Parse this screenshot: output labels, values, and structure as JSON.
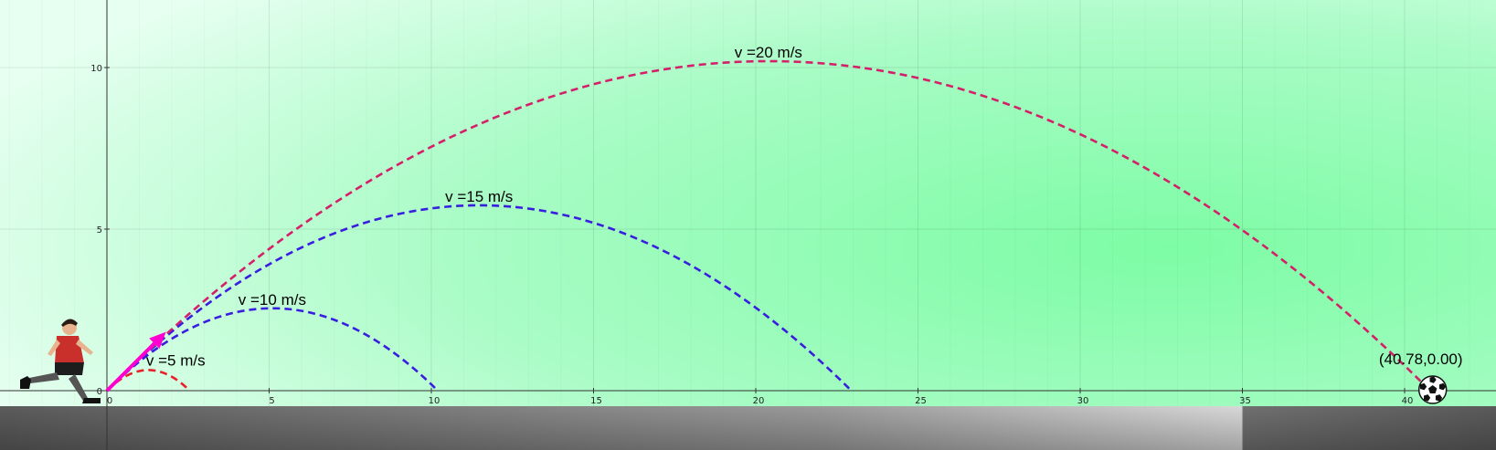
{
  "chart_data": {
    "type": "line",
    "title": "",
    "xlabel": "",
    "ylabel": "",
    "xlim": [
      -3.3,
      42.7
    ],
    "ylim": [
      -0.45,
      12.1
    ],
    "grid": true,
    "x_ticks": [
      {
        "value": 0,
        "label": "0"
      },
      {
        "value": 5,
        "label": "5"
      },
      {
        "value": 10,
        "label": "10"
      },
      {
        "value": 15,
        "label": "15"
      },
      {
        "value": 20,
        "label": "20"
      },
      {
        "value": 25,
        "label": "25"
      },
      {
        "value": 30,
        "label": "30"
      },
      {
        "value": 35,
        "label": "35"
      },
      {
        "value": 40,
        "label": "40"
      }
    ],
    "y_ticks": [
      {
        "value": 0,
        "label": "0"
      },
      {
        "value": 5,
        "label": "5"
      },
      {
        "value": 10,
        "label": "10"
      }
    ],
    "launch_angle_deg": 45,
    "series": [
      {
        "name": "v =5 m/s",
        "speed": 5,
        "color": "#e8202a",
        "range": 2.55
      },
      {
        "name": "v =10 m/s",
        "speed": 10,
        "color": "#3a1ee0",
        "range": 10.19
      },
      {
        "name": "v =15 m/s",
        "speed": 15,
        "color": "#3a1ee0",
        "range": 22.94
      },
      {
        "name": "v =20 m/s",
        "speed": 20,
        "color": "#d4206a",
        "range": 40.78
      }
    ],
    "annotations": [
      {
        "text": "(40.78,0.00)",
        "x": 40.78,
        "y": 0
      }
    ]
  }
}
